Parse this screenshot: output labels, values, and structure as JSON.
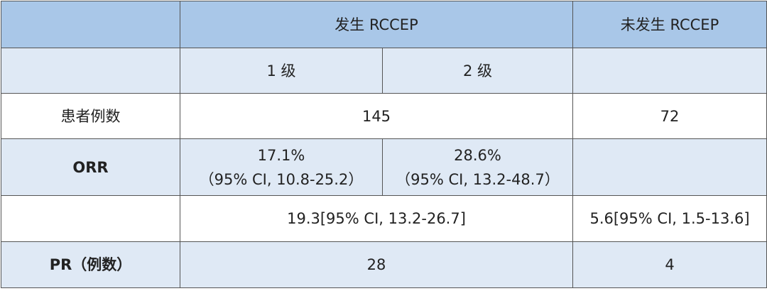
{
  "header": {
    "occurred": "发生 RCCEP",
    "not_occurred": "未发生 RCCEP"
  },
  "grades": [
    "1 级",
    "2 级"
  ],
  "patients": {
    "label": "患者例数",
    "occurred": 145,
    "not_occurred": 72
  },
  "orr": {
    "label": "ORR",
    "grade1": {
      "value": "17.1%",
      "ci": "（95% CI, 10.8-25.2）"
    },
    "grade2": {
      "value": "28.6%",
      "ci": "（95% CI, 13.2-48.7）"
    }
  },
  "overall": {
    "occurred": "19.3[95% CI, 13.2-26.7]",
    "not_occurred": "5.6[95% CI, 1.5-13.6]"
  },
  "pr": {
    "label": "PR（例数）",
    "occurred": 28,
    "not_occurred": 4
  }
}
